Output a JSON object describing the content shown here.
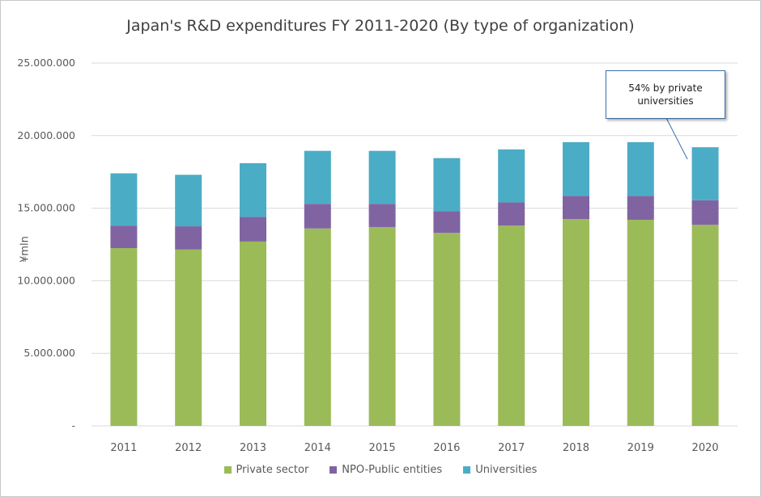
{
  "chart_data": {
    "type": "bar",
    "stacked": true,
    "title": "Japan's R&D expenditures FY 2011-2020 (By type of organization)",
    "xlabel": "",
    "ylabel": "¥mln",
    "ylim": [
      0,
      25000000
    ],
    "yticks": [
      0,
      5000000,
      10000000,
      15000000,
      20000000,
      25000000
    ],
    "ytick_labels": [
      "-",
      "5.000.000",
      "10.000.000",
      "15.000.000",
      "20.000.000",
      "25.000.000"
    ],
    "grid": true,
    "legend_position": "bottom",
    "categories": [
      "2011",
      "2012",
      "2013",
      "2014",
      "2015",
      "2016",
      "2017",
      "2018",
      "2019",
      "2020"
    ],
    "series": [
      {
        "name": "Private sector",
        "color": "#9bbb59",
        "values": [
          12250000,
          12150000,
          12700000,
          13600000,
          13700000,
          13300000,
          13800000,
          14250000,
          14200000,
          13850000
        ]
      },
      {
        "name": "NPO-Public entities",
        "color": "#8064a2",
        "values": [
          1550000,
          1600000,
          1700000,
          1700000,
          1600000,
          1500000,
          1600000,
          1600000,
          1650000,
          1700000
        ]
      },
      {
        "name": "Universities",
        "color": "#4bacc6",
        "values": [
          3600000,
          3550000,
          3700000,
          3650000,
          3650000,
          3650000,
          3650000,
          3700000,
          3700000,
          3650000
        ]
      }
    ],
    "annotations": [
      {
        "text": "54% by private universities",
        "target": "2020"
      }
    ]
  }
}
